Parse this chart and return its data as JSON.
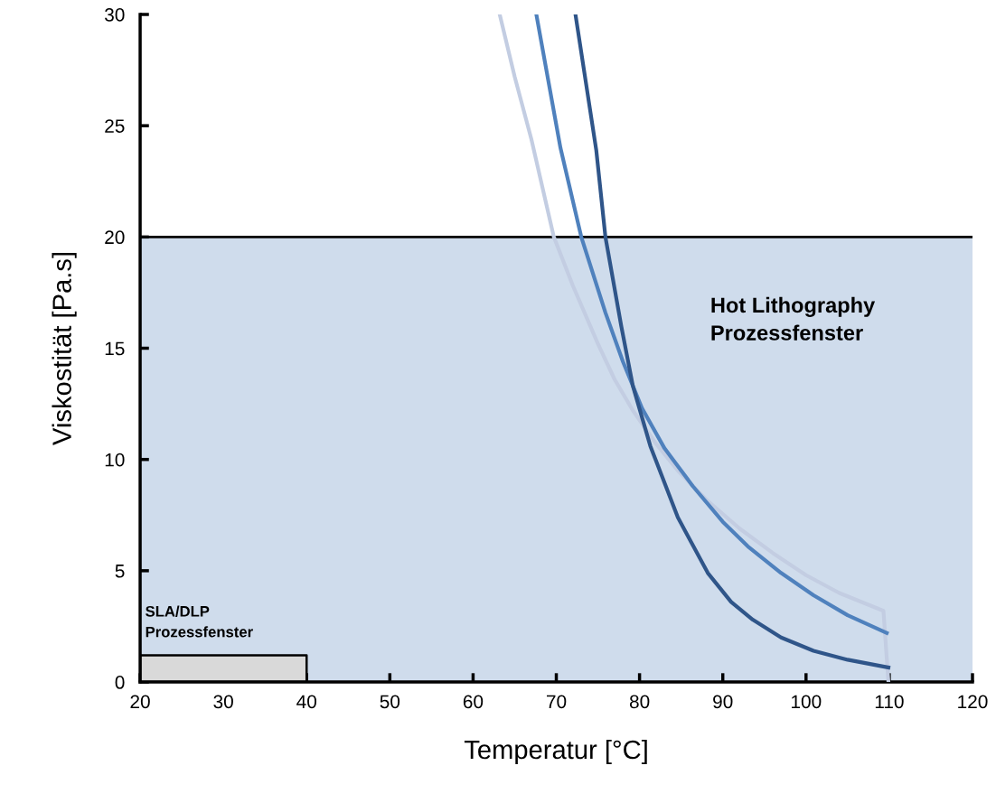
{
  "chart_data": {
    "type": "line",
    "xlabel": "Temperatur [°C]",
    "ylabel": "Viskostität [Pa.s]",
    "xlim": [
      20,
      120
    ],
    "ylim": [
      0,
      30
    ],
    "xticks": [
      20,
      30,
      40,
      50,
      60,
      70,
      80,
      90,
      100,
      110,
      120
    ],
    "yticks": [
      0,
      5,
      10,
      15,
      20,
      25,
      30
    ],
    "grid": false,
    "legend": false,
    "ref_lines": [
      {
        "axis": "y",
        "value": 20,
        "color": "#000000"
      }
    ],
    "marker": "none",
    "line_style": "solid",
    "bands": [
      {
        "axis": "y",
        "from": 0,
        "to": 20,
        "label": "Hot Lithography\nProzessfenster",
        "color": "#cfdcec"
      }
    ],
    "annotations": [
      {
        "text": "SLA/DLP\nProzessfenster",
        "x": 20,
        "y": 1.2
      }
    ],
    "series": [
      {
        "type": "area",
        "color": "#d9d9d9",
        "x": [
          20,
          40
        ],
        "values": [
          1.2,
          1.2
        ]
      },
      {
        "color": "#c3cde2",
        "x": [
          63.2,
          65,
          67,
          69.7,
          72,
          75,
          77,
          79.2,
          82,
          84.6,
          88,
          92,
          96,
          100,
          104,
          109.3,
          109.9
        ],
        "values": [
          30,
          27.2,
          24.4,
          20,
          17.8,
          15.2,
          13.6,
          12.2,
          10.7,
          9.5,
          8.2,
          6.9,
          5.8,
          4.8,
          4.0,
          3.2,
          0
        ]
      },
      {
        "color": "#4f81bd",
        "x": [
          67.6,
          70.5,
          73.0,
          75.9,
          78,
          80.3,
          83,
          86.4,
          90,
          93,
          97,
          100.9,
          105,
          109.7
        ],
        "values": [
          30,
          24.0,
          20,
          16.6,
          14.4,
          12.3,
          10.5,
          8.8,
          7.2,
          6.1,
          4.9,
          3.9,
          3.0,
          2.2
        ]
      },
      {
        "color": "#2f5589",
        "x": [
          72.3,
          74.8,
          75.9,
          77.8,
          79.2,
          81.3,
          84.6,
          88.2,
          91,
          93.6,
          97,
          100.9,
          105,
          109.9
        ],
        "values": [
          30,
          23.9,
          20,
          16.0,
          13.3,
          10.6,
          7.4,
          4.9,
          3.6,
          2.8,
          2.0,
          1.4,
          1.0,
          0.65
        ]
      }
    ]
  }
}
